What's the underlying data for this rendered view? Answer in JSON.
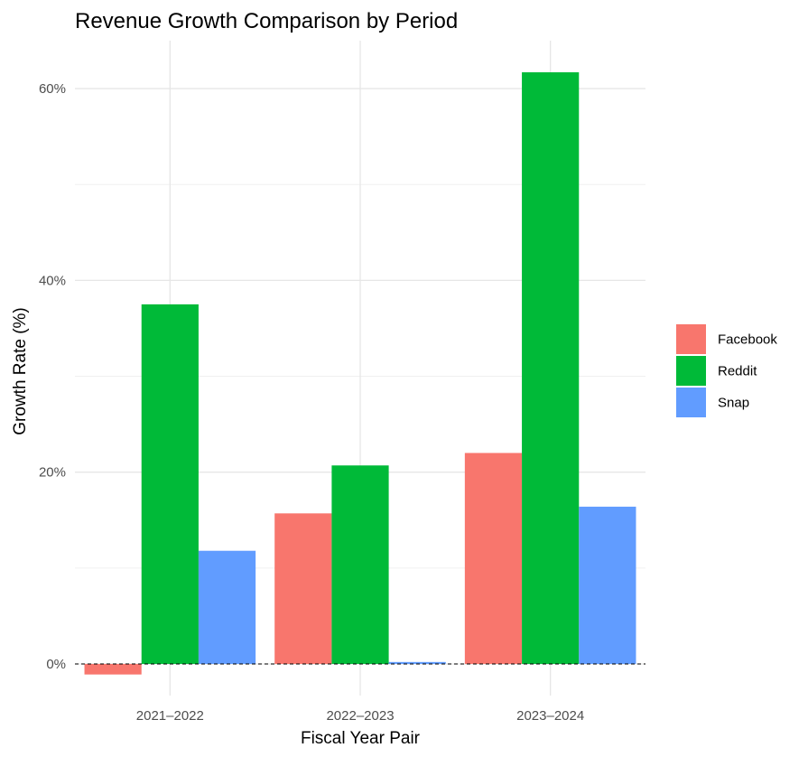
{
  "chart_data": {
    "type": "bar",
    "title": "Revenue Growth Comparison by Period",
    "xlabel": "Fiscal Year Pair",
    "ylabel": "Growth Rate (%)",
    "categories": [
      "2021–2022",
      "2022–2023",
      "2023–2024"
    ],
    "series": [
      {
        "name": "Facebook",
        "color": "#F8766D",
        "values": [
          -1.1,
          15.7,
          22.0
        ]
      },
      {
        "name": "Reddit",
        "color": "#00BA38",
        "values": [
          37.5,
          20.7,
          61.7
        ]
      },
      {
        "name": "Snap",
        "color": "#619CFF",
        "values": [
          11.8,
          0.2,
          16.4
        ]
      }
    ],
    "ylim": [
      -3.3,
      65
    ],
    "yticks": [
      0,
      20,
      40,
      60
    ],
    "ytick_labels": [
      "0%",
      "20%",
      "40%",
      "60%"
    ],
    "reference_line": {
      "y": 0,
      "style": "dashed"
    },
    "grid": true,
    "legend_position": "right"
  }
}
